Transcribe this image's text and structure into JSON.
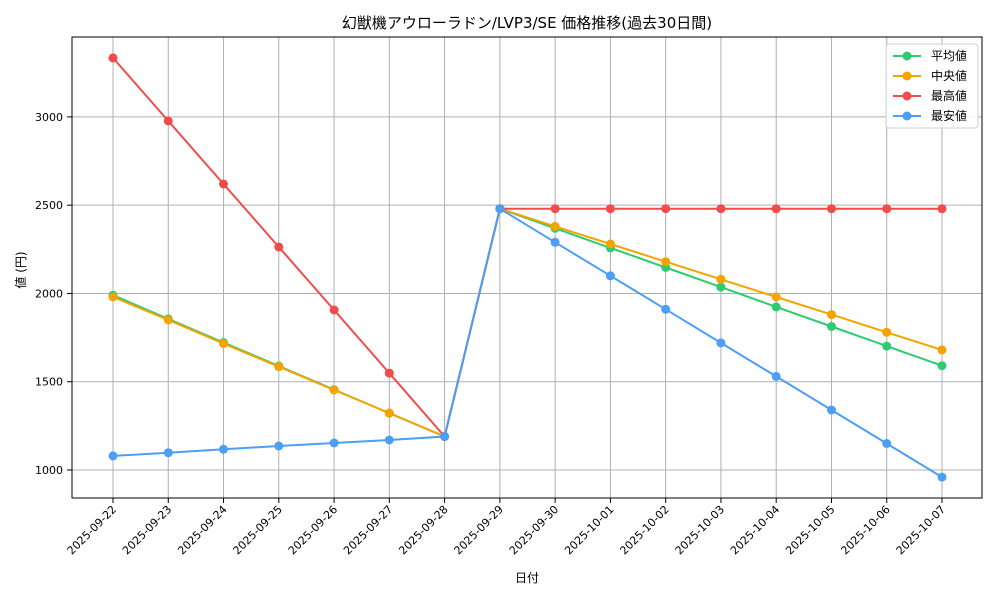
{
  "chart_data": {
    "type": "line",
    "title": "幻獣機アウローラドン/LVP3/SE 価格推移(過去30日間)",
    "xlabel": "日付",
    "ylabel": "値 (円)",
    "categories": [
      "2025-09-22",
      "2025-09-23",
      "2025-09-24",
      "2025-09-25",
      "2025-09-26",
      "2025-09-27",
      "2025-09-28",
      "2025-09-29",
      "2025-09-30",
      "2025-10-01",
      "2025-10-02",
      "2025-10-03",
      "2025-10-04",
      "2025-10-05",
      "2025-10-06",
      "2025-10-07"
    ],
    "yticks": [
      1000,
      1500,
      2000,
      2500,
      3000
    ],
    "ylim": [
      850,
      3450
    ],
    "grid": true,
    "legend_position": "upper right",
    "series": [
      {
        "name": "平均値",
        "color": "#2ecc71",
        "values": [
          1990,
          1856,
          1722,
          1589,
          1455,
          1322,
          1190,
          2480,
          2369,
          2258,
          2147,
          2036,
          1924,
          1813,
          1702,
          1591
        ]
      },
      {
        "name": "中央値",
        "color": "#f5a300",
        "values": [
          1980,
          1850,
          1716,
          1585,
          1453,
          1323,
          1190,
          2480,
          2380,
          2280,
          2180,
          2080,
          1980,
          1880,
          1780,
          1680
        ]
      },
      {
        "name": "最高値",
        "color": "#f24b4b",
        "values": [
          3334,
          2977,
          2620,
          2263,
          1906,
          1549,
          1190,
          2480,
          2480,
          2480,
          2480,
          2480,
          2480,
          2480,
          2480,
          2480
        ]
      },
      {
        "name": "最安値",
        "color": "#4d9ef6",
        "values": [
          1080,
          1098,
          1117,
          1136,
          1153,
          1170,
          1190,
          2480,
          2290,
          2100,
          1910,
          1720,
          1530,
          1340,
          1150,
          960
        ]
      }
    ]
  }
}
